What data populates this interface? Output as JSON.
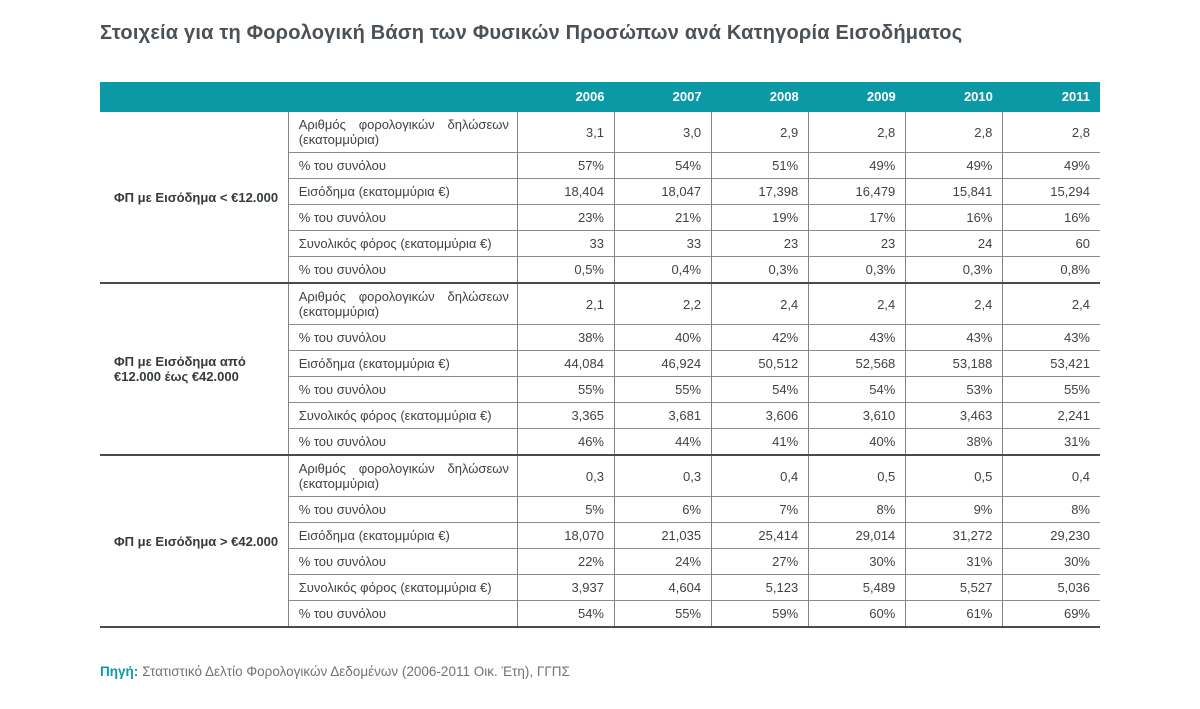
{
  "title": "Στοιχεία για τη Φορολογική Βάση των Φυσικών Προσώπων ανά Κατηγορία Εισοδήματος",
  "colors": {
    "header_teal": "#0b99a5",
    "title_text": "#4a5157",
    "cell_text": "#3e4347",
    "thin_border": "#848484",
    "thick_border": "#4a4a4a",
    "source_text": "#6e7478"
  },
  "chart_data": {
    "type": "table",
    "title": "Στοιχεία για τη Φορολογική Βάση των Φυσικών Προσώπων ανά Κατηγορία Εισοδήματος",
    "columns": [
      "2006",
      "2007",
      "2008",
      "2009",
      "2010",
      "2011"
    ],
    "groups": [
      {
        "category": "ΦΠ με Εισόδημα < €12.000",
        "rows": [
          {
            "label": "Αριθμός φορολογικών δηλώσεων (εκατομμύρια)",
            "values": [
              "3,1",
              "3,0",
              "2,9",
              "2,8",
              "2,8",
              "2,8"
            ]
          },
          {
            "label": "% του συνόλου",
            "values": [
              "57%",
              "54%",
              "51%",
              "49%",
              "49%",
              "49%"
            ]
          },
          {
            "label": "Εισόδημα (εκατομμύρια €)",
            "values": [
              "18,404",
              "18,047",
              "17,398",
              "16,479",
              "15,841",
              "15,294"
            ]
          },
          {
            "label": "% του συνόλου",
            "values": [
              "23%",
              "21%",
              "19%",
              "17%",
              "16%",
              "16%"
            ]
          },
          {
            "label": "Συνολικός φόρος (εκατομμύρια €)",
            "values": [
              "33",
              "33",
              "23",
              "23",
              "24",
              "60"
            ]
          },
          {
            "label": "% του συνόλου",
            "values": [
              "0,5%",
              "0,4%",
              "0,3%",
              "0,3%",
              "0,3%",
              "0,8%"
            ]
          }
        ]
      },
      {
        "category": "ΦΠ με Εισόδημα από\n€12.000 έως €42.000",
        "rows": [
          {
            "label": "Αριθμός φορολογικών δηλώσεων (εκατομμύρια)",
            "values": [
              "2,1",
              "2,2",
              "2,4",
              "2,4",
              "2,4",
              "2,4"
            ]
          },
          {
            "label": "% του συνόλου",
            "values": [
              "38%",
              "40%",
              "42%",
              "43%",
              "43%",
              "43%"
            ]
          },
          {
            "label": "Εισόδημα (εκατομμύρια €)",
            "values": [
              "44,084",
              "46,924",
              "50,512",
              "52,568",
              "53,188",
              "53,421"
            ]
          },
          {
            "label": "% του συνόλου",
            "values": [
              "55%",
              "55%",
              "54%",
              "54%",
              "53%",
              "55%"
            ]
          },
          {
            "label": "Συνολικός φόρος (εκατομμύρια €)",
            "values": [
              "3,365",
              "3,681",
              "3,606",
              "3,610",
              "3,463",
              "2,241"
            ]
          },
          {
            "label": "% του συνόλου",
            "values": [
              "46%",
              "44%",
              "41%",
              "40%",
              "38%",
              "31%"
            ]
          }
        ]
      },
      {
        "category": "ΦΠ με Εισόδημα > €42.000",
        "rows": [
          {
            "label": "Αριθμός φορολογικών δηλώσεων (εκατομμύρια)",
            "values": [
              "0,3",
              "0,3",
              "0,4",
              "0,5",
              "0,5",
              "0,4"
            ]
          },
          {
            "label": "% του συνόλου",
            "values": [
              "5%",
              "6%",
              "7%",
              "8%",
              "9%",
              "8%"
            ]
          },
          {
            "label": "Εισόδημα (εκατομμύρια €)",
            "values": [
              "18,070",
              "21,035",
              "25,414",
              "29,014",
              "31,272",
              "29,230"
            ]
          },
          {
            "label": "% του συνόλου",
            "values": [
              "22%",
              "24%",
              "27%",
              "30%",
              "31%",
              "30%"
            ]
          },
          {
            "label": "Συνολικός φόρος (εκατομμύρια €)",
            "values": [
              "3,937",
              "4,604",
              "5,123",
              "5,489",
              "5,527",
              "5,036"
            ]
          },
          {
            "label": "% του συνόλου",
            "values": [
              "54%",
              "55%",
              "59%",
              "60%",
              "61%",
              "69%"
            ]
          }
        ]
      }
    ]
  },
  "footer": {
    "source_label": "Πηγή:",
    "source_text": "Στατιστικό Δελτίο Φορολογικών Δεδομένων (2006-2011 Οικ. Έτη), ΓΓΠΣ"
  }
}
